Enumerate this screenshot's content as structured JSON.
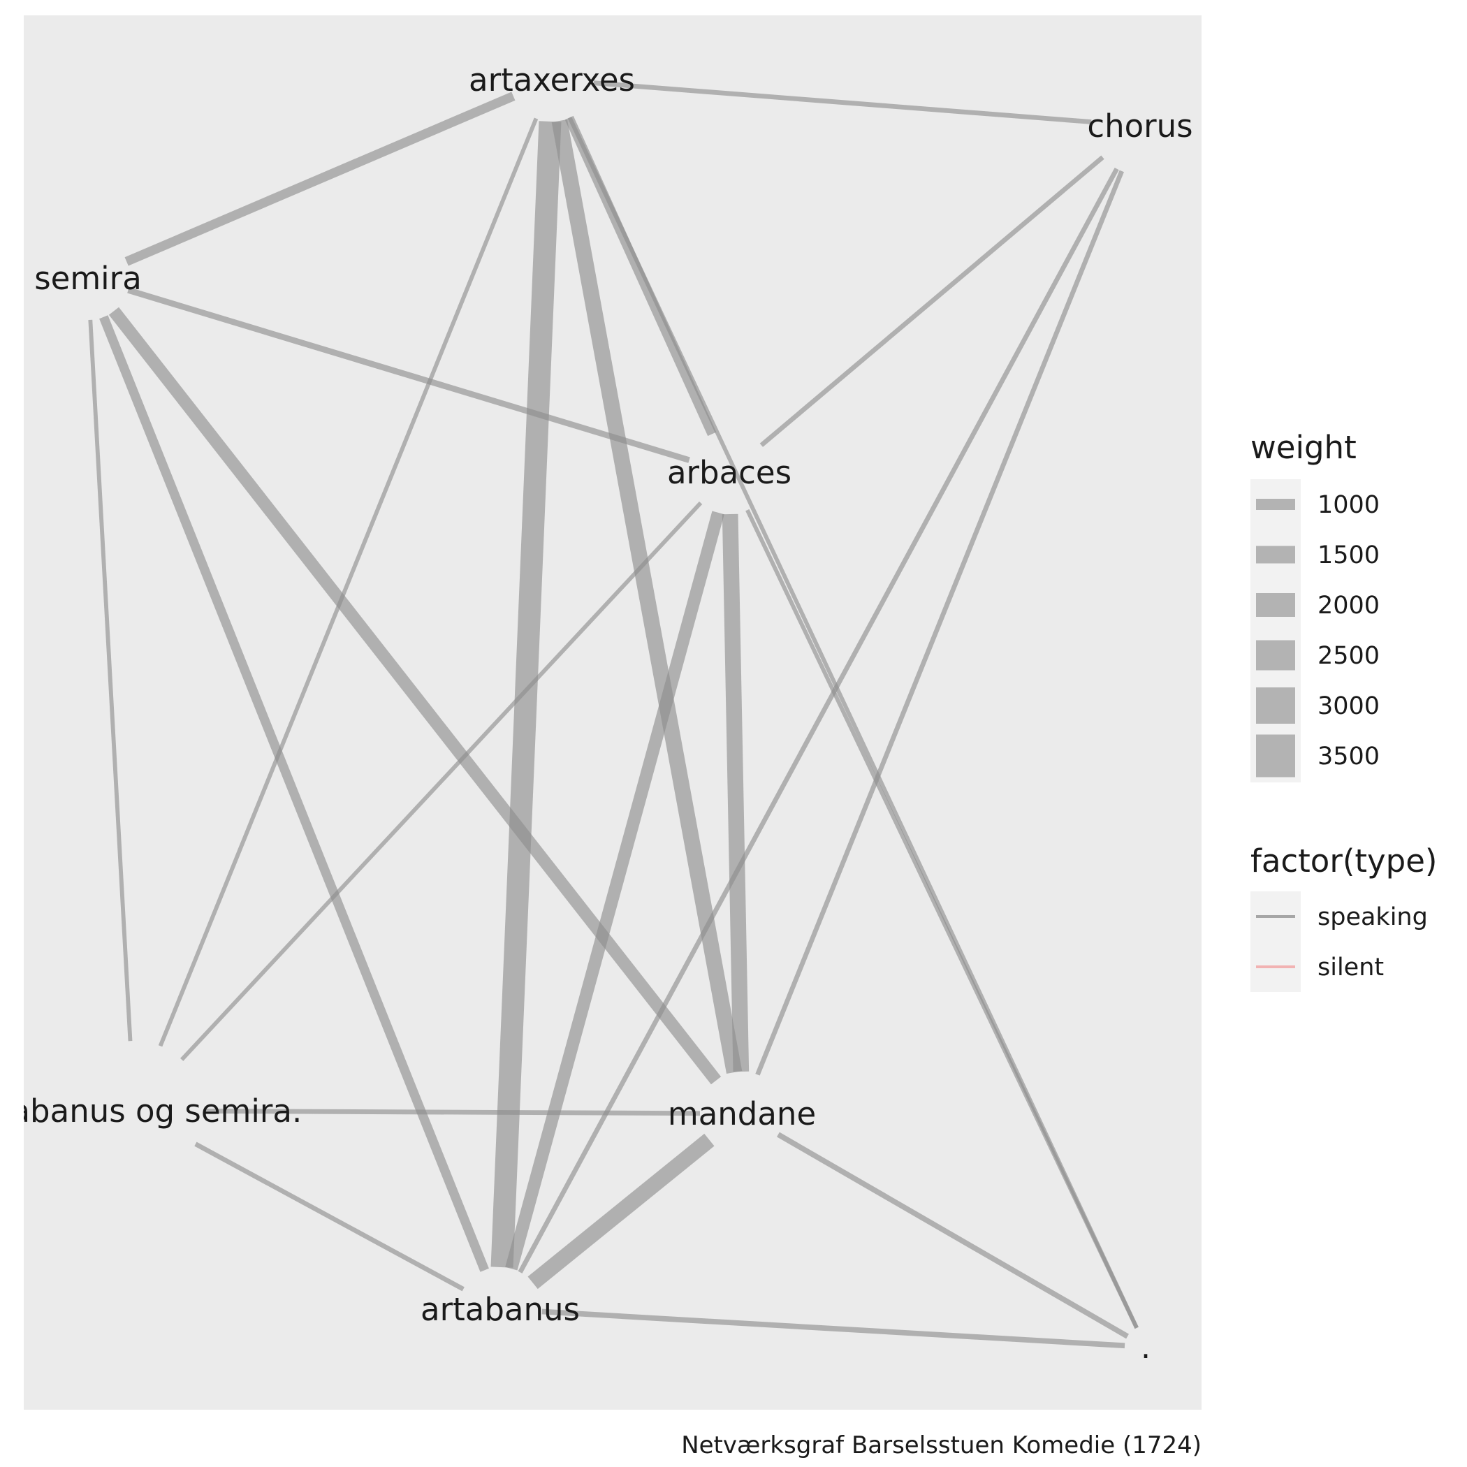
{
  "chart_data": {
    "type": "network",
    "caption": "Netværksgraf Barselsstuen Komedie (1724)",
    "nodes": [
      {
        "id": "artaxerxes",
        "label": "artaxerxes"
      },
      {
        "id": "chorus",
        "label": "chorus"
      },
      {
        "id": "semira",
        "label": "semira"
      },
      {
        "id": "arbaces",
        "label": "arbaces"
      },
      {
        "id": "artabanus_og_semira",
        "label": "artabanus og semira."
      },
      {
        "id": "mandane",
        "label": "mandane"
      },
      {
        "id": "artabanus",
        "label": "artabanus"
      },
      {
        "id": "dot",
        "label": "."
      }
    ],
    "edges": [
      {
        "source": "artaxerxes",
        "target": "artabanus",
        "weight": 3500,
        "type": "speaking"
      },
      {
        "source": "artaxerxes",
        "target": "mandane",
        "weight": 2500,
        "type": "speaking"
      },
      {
        "source": "artaxerxes",
        "target": "arbaces",
        "weight": 1500,
        "type": "speaking"
      },
      {
        "source": "artaxerxes",
        "target": "semira",
        "weight": 1500,
        "type": "speaking"
      },
      {
        "source": "artaxerxes",
        "target": "chorus",
        "weight": 800,
        "type": "speaking"
      },
      {
        "source": "artaxerxes",
        "target": "artabanus_og_semira",
        "weight": 700,
        "type": "speaking"
      },
      {
        "source": "artaxerxes",
        "target": "dot",
        "weight": 700,
        "type": "speaking"
      },
      {
        "source": "arbaces",
        "target": "mandane",
        "weight": 2500,
        "type": "speaking"
      },
      {
        "source": "arbaces",
        "target": "artabanus",
        "weight": 2000,
        "type": "speaking"
      },
      {
        "source": "arbaces",
        "target": "semira",
        "weight": 1000,
        "type": "speaking"
      },
      {
        "source": "arbaces",
        "target": "chorus",
        "weight": 800,
        "type": "speaking"
      },
      {
        "source": "arbaces",
        "target": "artabanus_og_semira",
        "weight": 700,
        "type": "speaking"
      },
      {
        "source": "arbaces",
        "target": "dot",
        "weight": 700,
        "type": "speaking"
      },
      {
        "source": "semira",
        "target": "mandane",
        "weight": 2000,
        "type": "speaking"
      },
      {
        "source": "semira",
        "target": "artabanus",
        "weight": 1500,
        "type": "speaking"
      },
      {
        "source": "semira",
        "target": "artabanus_og_semira",
        "weight": 700,
        "type": "speaking"
      },
      {
        "source": "mandane",
        "target": "artabanus",
        "weight": 2500,
        "type": "speaking"
      },
      {
        "source": "mandane",
        "target": "chorus",
        "weight": 800,
        "type": "speaking"
      },
      {
        "source": "mandane",
        "target": "artabanus_og_semira",
        "weight": 800,
        "type": "speaking"
      },
      {
        "source": "mandane",
        "target": "dot",
        "weight": 900,
        "type": "speaking"
      },
      {
        "source": "artabanus",
        "target": "chorus",
        "weight": 800,
        "type": "speaking"
      },
      {
        "source": "artabanus",
        "target": "artabanus_og_semira",
        "weight": 800,
        "type": "speaking"
      },
      {
        "source": "artabanus",
        "target": "dot",
        "weight": 900,
        "type": "speaking"
      }
    ],
    "legend": {
      "weight": {
        "title": "weight",
        "entries": [
          1000,
          1500,
          2000,
          2500,
          3000,
          3500
        ]
      },
      "type": {
        "title": "factor(type)",
        "entries": [
          {
            "label": "speaking",
            "color": "#a6a6a6"
          },
          {
            "label": "silent",
            "color": "#f2b3b3"
          }
        ]
      }
    },
    "colors": {
      "panel_background": "#ebebeb",
      "edge_speaking": "#8c8c8c",
      "edge_silent": "#f4a6a6",
      "legend_key_background": "#f2f2f2"
    }
  }
}
